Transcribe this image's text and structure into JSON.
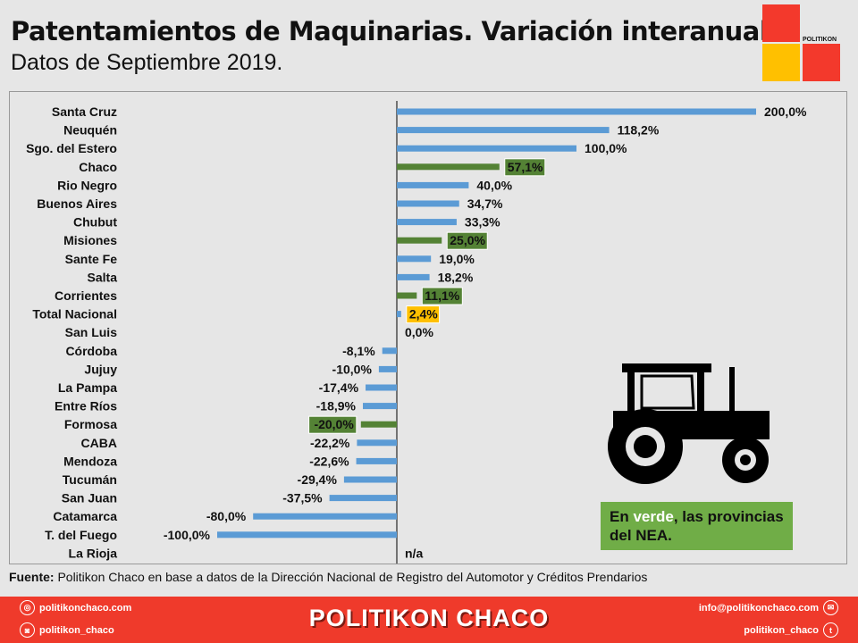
{
  "header": {
    "title": "Patentamientos de Maquinarias. Variación interanual.",
    "subtitle": "Datos de Septiembre 2019.",
    "logo_text": "POLITIKON"
  },
  "chart_data": {
    "type": "bar",
    "orientation": "horizontal",
    "title": "Patentamientos de Maquinarias. Variación interanual.",
    "xlabel": "",
    "ylabel": "",
    "xlim": [
      -100,
      200
    ],
    "categories": [
      "Santa Cruz",
      "Neuquén",
      "Sgo. del Estero",
      "Chaco",
      "Rio Negro",
      "Buenos Aires",
      "Chubut",
      "Misiones",
      "Sante Fe",
      "Salta",
      "Corrientes",
      "Total Nacional",
      "San Luis",
      "Córdoba",
      "Jujuy",
      "La Pampa",
      "Entre Ríos",
      "Formosa",
      "CABA",
      "Mendoza",
      "Tucumán",
      "San Juan",
      "Catamarca",
      "T. del Fuego",
      "La Rioja"
    ],
    "values": [
      200,
      118.2,
      100,
      57.1,
      40,
      34.7,
      33.3,
      25,
      19,
      18.2,
      11.1,
      2.4,
      0,
      -8.1,
      -10,
      -17.4,
      -18.9,
      -20,
      -22.2,
      -22.6,
      -29.4,
      -37.5,
      -80,
      -100,
      null
    ],
    "labels": [
      "200,0%",
      "118,2%",
      "100,0%",
      "57,1%",
      "40,0%",
      "34,7%",
      "33,3%",
      "25,0%",
      "19,0%",
      "18,2%",
      "11,1%",
      "2,4%",
      "0,0%",
      "-8,1%",
      "-10,0%",
      "-17,4%",
      "-18,9%",
      "-20,0%",
      "-22,2%",
      "-22,6%",
      "-29,4%",
      "-37,5%",
      "-80,0%",
      "-100,0%",
      "n/a"
    ],
    "highlight": [
      "none",
      "none",
      "none",
      "nea",
      "none",
      "none",
      "none",
      "nea",
      "none",
      "none",
      "nea",
      "total",
      "none",
      "none",
      "none",
      "none",
      "none",
      "nea",
      "none",
      "none",
      "none",
      "none",
      "none",
      "none",
      "none"
    ],
    "colors": {
      "default": "#5b9bd5",
      "nea": "#548235",
      "total": "#ffc000",
      "nea_label_bg": "#548235",
      "total_label_bg": "#ffc000"
    }
  },
  "note": {
    "before": "En ",
    "highlight": "verde",
    "after": ", las provincias del NEA."
  },
  "source": {
    "label": "Fuente:",
    "text": " Politikon Chaco en base a datos de la Dirección Nacional de Registro del Automotor y Créditos Prendarios"
  },
  "footer": {
    "web": "politikonchaco.com",
    "instagram": "politikon_chaco",
    "brand": "POLITIKON CHACO",
    "email": "info@politikonchaco.com",
    "twitter": "politikon_chaco"
  }
}
